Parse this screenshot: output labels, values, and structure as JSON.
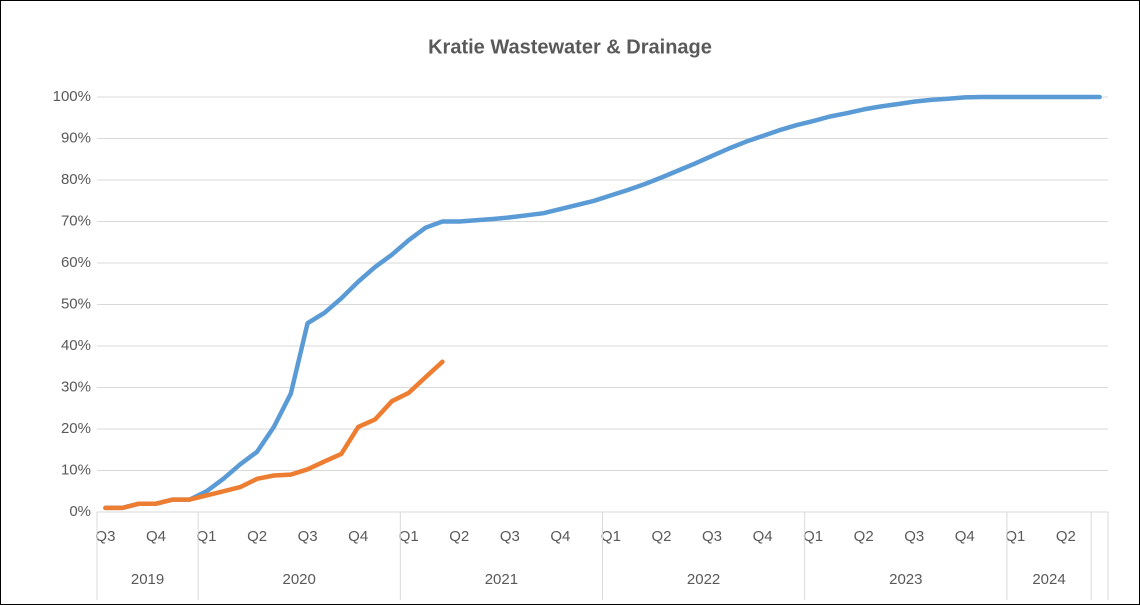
{
  "chart_data": {
    "type": "line",
    "title": "Kratie Wastewater & Drainage",
    "categories": [
      "Q3",
      null,
      null,
      "Q4",
      null,
      null,
      "Q1",
      null,
      null,
      "Q2",
      null,
      null,
      "Q3",
      null,
      null,
      "Q4",
      null,
      null,
      "Q1",
      null,
      null,
      "Q2",
      null,
      null,
      "Q3",
      null,
      null,
      "Q4",
      null,
      null,
      "Q1",
      null,
      null,
      "Q2",
      null,
      null,
      "Q3",
      null,
      null,
      "Q4",
      null,
      null,
      "Q1",
      null,
      null,
      "Q2",
      null,
      null,
      "Q3",
      null,
      null,
      "Q4",
      null,
      null,
      "Q1",
      null,
      null,
      "Q2",
      null,
      null
    ],
    "groups": [
      {
        "label": "2019",
        "size": 6
      },
      {
        "label": "2020",
        "size": 12
      },
      {
        "label": "2021",
        "size": 12
      },
      {
        "label": "2022",
        "size": 12
      },
      {
        "label": "2023",
        "size": 12
      },
      {
        "label": "2024",
        "size": 5
      },
      {
        "label": null,
        "size": 1
      }
    ],
    "series": [
      {
        "color": "#5b9bd5",
        "values": [
          1,
          1,
          2,
          2,
          3,
          3,
          5,
          8,
          11.5,
          14.5,
          20.5,
          28.5,
          45.5,
          48,
          51.5,
          55.5,
          59,
          62,
          65.5,
          68.5,
          70,
          70,
          70.3,
          70.6,
          71,
          71.5,
          72,
          73,
          74,
          75,
          76.3,
          77.6,
          79,
          80.6,
          82.3,
          84,
          85.8,
          87.6,
          89.2,
          90.6,
          92,
          93.2,
          94.2,
          95.3,
          96.1,
          97,
          97.7,
          98.3,
          98.9,
          99.3,
          99.6,
          99.9,
          100,
          100,
          100,
          100,
          100,
          100,
          100,
          100
        ]
      },
      {
        "color": "#ed7d31",
        "values": [
          1,
          1,
          2,
          2,
          3,
          3,
          4,
          5,
          6,
          8,
          8.8,
          9,
          10.3,
          12.2,
          14,
          20.5,
          22.3,
          26.7,
          28.7,
          32.5,
          36.2,
          null,
          null,
          null,
          null,
          null,
          null,
          null,
          null,
          null,
          null,
          null,
          null,
          null,
          null,
          null,
          null,
          null,
          null,
          null,
          null,
          null,
          null,
          null,
          null,
          null,
          null,
          null,
          null,
          null,
          null,
          null,
          null,
          null,
          null,
          null,
          null,
          null,
          null,
          null
        ]
      }
    ],
    "ylim": [
      0,
      100
    ],
    "yticks": [
      {
        "value": 0,
        "label": "0%"
      },
      {
        "value": 10,
        "label": "10%"
      },
      {
        "value": 20,
        "label": "20%"
      },
      {
        "value": 30,
        "label": "30%"
      },
      {
        "value": 40,
        "label": "40%"
      },
      {
        "value": 50,
        "label": "50%"
      },
      {
        "value": 60,
        "label": "60%"
      },
      {
        "value": 70,
        "label": "70%"
      },
      {
        "value": 80,
        "label": "80%"
      },
      {
        "value": 90,
        "label": "90%"
      },
      {
        "value": 100,
        "label": "100%"
      }
    ],
    "grid": true
  }
}
